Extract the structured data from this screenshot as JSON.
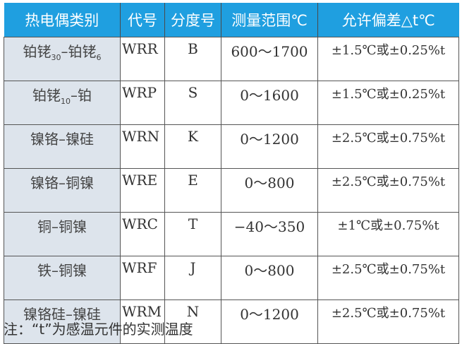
{
  "headers": [
    "热电偶类别",
    "代号",
    "分度号",
    "测量范围℃",
    "允许偏差△t℃"
  ],
  "rows": [
    {
      "type": "铂铑",
      "type_sub1": "30",
      "type_mid": "–铂铑",
      "type_sub2": "6",
      "code": "WRR",
      "grade": "B",
      "range": "600～1700",
      "tolerance": "±1.5℃或±0.25%t"
    },
    {
      "type": "铂铑",
      "type_sub1": "10",
      "type_mid": "–铂",
      "type_sub2": "",
      "code": "WRP",
      "grade": "S",
      "range": "0～1600",
      "tolerance": "±1.5℃或±0.25%t"
    },
    {
      "type": "镍铬–镍硅",
      "code": "WRN",
      "grade": "K",
      "range": "0～1200",
      "tolerance": "±2.5℃或±0.75%t"
    },
    {
      "type": "镍铬–铜镍",
      "code": "WRE",
      "grade": "E",
      "range": "0～800",
      "tolerance": "±2.5℃或±0.75%t"
    },
    {
      "type": "铜–铜镍",
      "code": "WRC",
      "grade": "T",
      "range": "−40～350",
      "tolerance": "±1℃或±0.75%t"
    },
    {
      "type": "铁–铜镍",
      "code": "WRF",
      "grade": "J",
      "range": "0～800",
      "tolerance": "±2.5℃或±0.75%t"
    },
    {
      "type": "镍铬硅–镍硅",
      "code": "WRM",
      "grade": "N",
      "range": "0～1200",
      "tolerance": "±2.5℃或±0.75%t"
    }
  ],
  "note": "注：“t”为感温元件的实测温度",
  "colors": {
    "header_bg": "#1f9fe0",
    "first_col_bg": "#dde4ec"
  }
}
